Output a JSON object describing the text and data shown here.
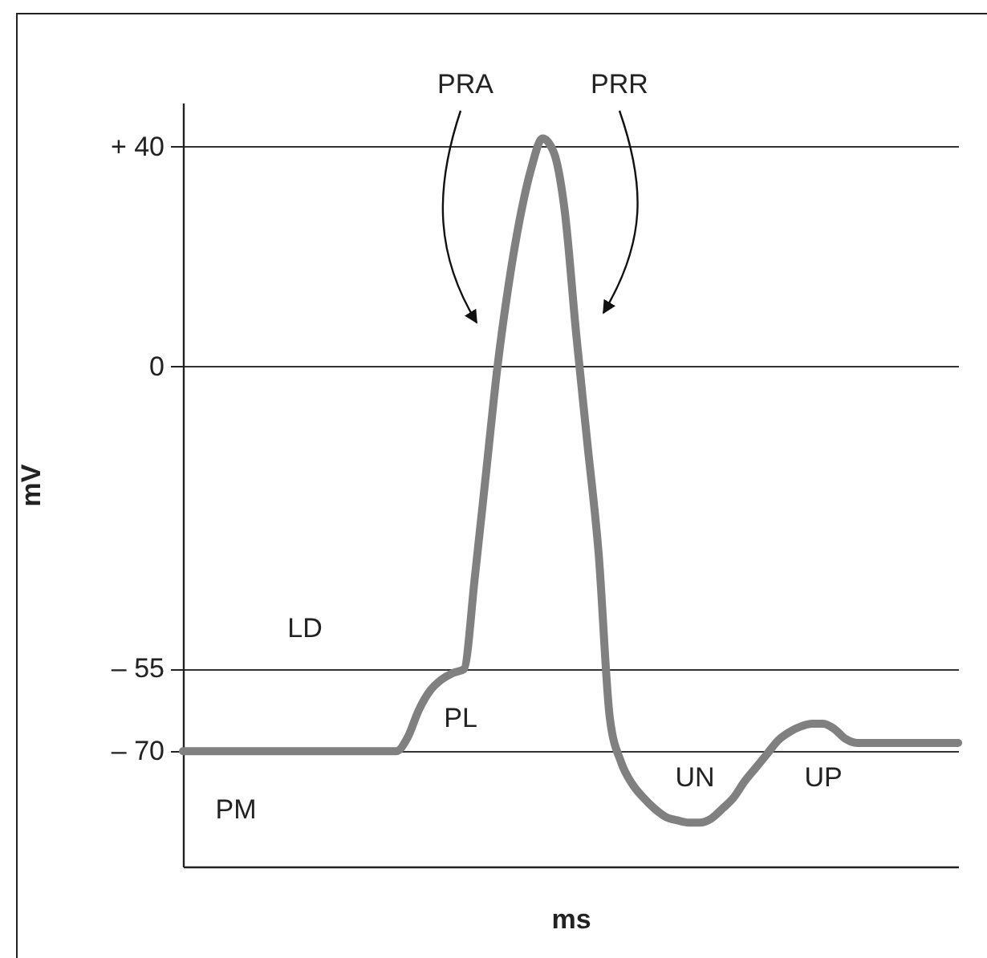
{
  "chart_data": {
    "type": "line",
    "xlabel": "ms",
    "ylabel": "mV",
    "categories": [
      null,
      null,
      null,
      null,
      null,
      null,
      null,
      null,
      null,
      null,
      null,
      null,
      null,
      null,
      null,
      null,
      null,
      null,
      null,
      null,
      null,
      null,
      null,
      null,
      null,
      null,
      null,
      null,
      null,
      null,
      null,
      null,
      null,
      null,
      null,
      null,
      null,
      null,
      null,
      null,
      null,
      null,
      null,
      null,
      null,
      null,
      null,
      null,
      null,
      null,
      null,
      null,
      null,
      null,
      null,
      null,
      null,
      null,
      null,
      null,
      null,
      null,
      null,
      null,
      null,
      null,
      null,
      null,
      null,
      null
    ],
    "series": [
      {
        "color": "#808080",
        "values": [
          -70,
          -70,
          -70,
          -70,
          -70,
          -70,
          -70,
          -70,
          -70,
          -70,
          -70,
          -70,
          -70,
          -70,
          -70,
          -70,
          -70,
          -70,
          -70,
          -70,
          -67.5,
          -62.5,
          -59,
          -57,
          -55.8,
          -55.1,
          -38,
          -19,
          0,
          15,
          27,
          36,
          41.5,
          39,
          28,
          6,
          -14,
          -34,
          -64,
          -72,
          -76,
          -78.5,
          -80.5,
          -82,
          -82.6,
          -83,
          -83,
          -82.3,
          -80.5,
          -78.5,
          -75.5,
          -73,
          -70.5,
          -68,
          -66.5,
          -65.5,
          -65,
          -65,
          -66,
          -67.8,
          -68.5,
          -68.5,
          -68.5,
          -68.5,
          -68.5,
          -68.5,
          -68.5,
          -68.5,
          -68.5,
          -68.5
        ]
      }
    ],
    "ylim": [
      -91,
      48
    ],
    "yticks": [
      {
        "value": 40,
        "label": "+ 40"
      },
      0,
      {
        "value": -55,
        "label": "– 55"
      },
      {
        "value": -70,
        "label": "– 70"
      }
    ],
    "grid": "y",
    "marker": "none",
    "line_style": "solid",
    "annotations": [
      "PRA",
      "PRR",
      "LD",
      "PL",
      "PM",
      "UN",
      "UP"
    ]
  }
}
